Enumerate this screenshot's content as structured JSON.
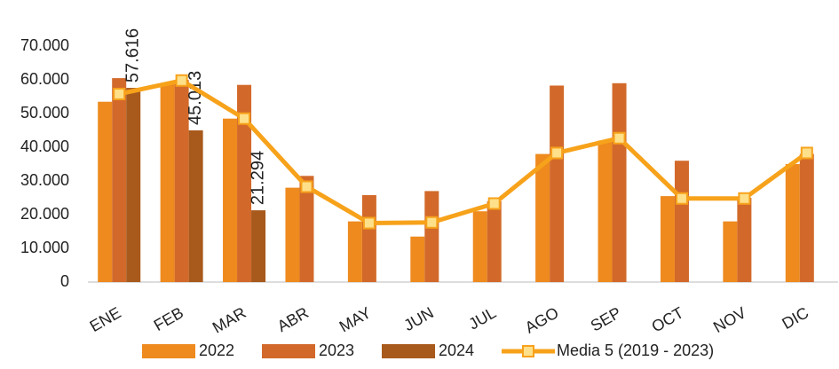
{
  "chart_data": {
    "type": "bar",
    "categories": [
      "ENE",
      "FEB",
      "MAR",
      "ABR",
      "MAY",
      "JUN",
      "JUL",
      "AGO",
      "SEP",
      "OCT",
      "NOV",
      "DIC"
    ],
    "series": [
      {
        "name": "2022",
        "color": "#ee8a1e",
        "values": [
          53500,
          59000,
          48500,
          28000,
          18000,
          13500,
          21000,
          38000,
          42000,
          25500,
          18000,
          35000
        ]
      },
      {
        "name": "2023",
        "color": "#d2692a",
        "values": [
          60500,
          60000,
          58500,
          31500,
          25800,
          27000,
          24000,
          58300,
          59000,
          36000,
          25000,
          38000
        ]
      },
      {
        "name": "2024",
        "color": "#a85a1c",
        "values": [
          57616,
          45013,
          21294,
          null,
          null,
          null,
          null,
          null,
          null,
          null,
          null,
          null
        ],
        "value_labels": [
          "57.616",
          "45.013",
          "21.294",
          null,
          null,
          null,
          null,
          null,
          null,
          null,
          null,
          null
        ]
      },
      {
        "name": "Media 5 (2019 - 2023)",
        "type": "line",
        "color": "#f7a21b",
        "marker_fill": "#ffe08a",
        "values": [
          55800,
          59800,
          48500,
          28300,
          17500,
          17700,
          23300,
          38300,
          42700,
          24800,
          24800,
          38300
        ]
      }
    ],
    "ylim": [
      0,
      70000
    ],
    "yticks": [
      0,
      {
        "value": 10000,
        "label": "10.000"
      },
      {
        "value": 20000,
        "label": "20.000"
      },
      {
        "value": 30000,
        "label": "30.000"
      },
      {
        "value": 40000,
        "label": "40.000"
      },
      {
        "value": 50000,
        "label": "50.000"
      },
      {
        "value": 60000,
        "label": "60.000"
      },
      {
        "value": 70000,
        "label": "70.000"
      }
    ],
    "legend": "bottom"
  }
}
